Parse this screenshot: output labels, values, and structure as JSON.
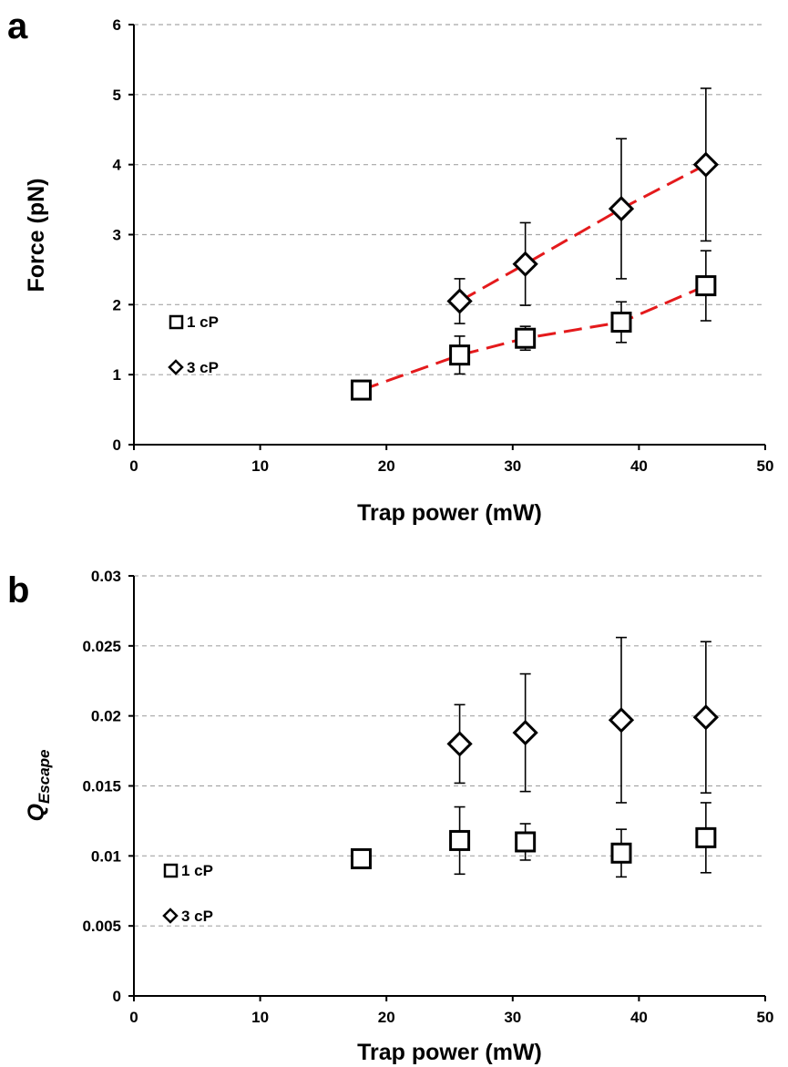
{
  "chart_data": [
    {
      "panel_label": "a",
      "type": "scatter",
      "xlabel": "Trap power (mW)",
      "ylabel": "Force (pN)",
      "xlim": [
        0,
        50
      ],
      "ylim": [
        0,
        6
      ],
      "x_ticks": [
        "0",
        "10",
        "20",
        "30",
        "40",
        "50"
      ],
      "y_ticks": [
        "0",
        "1",
        "2",
        "3",
        "4",
        "5",
        "6"
      ],
      "grid": "horizontal dashed",
      "legend_position": "left",
      "series": [
        {
          "name": "1 cP",
          "marker": "square",
          "x": [
            18,
            25.8,
            31,
            38.6,
            45.3
          ],
          "y": [
            0.78,
            1.28,
            1.52,
            1.75,
            2.27
          ],
          "err": [
            0.07,
            0.27,
            0.17,
            0.29,
            0.5
          ],
          "trendline": true
        },
        {
          "name": "3 cP",
          "marker": "diamond",
          "x": [
            25.8,
            31,
            38.6,
            45.3
          ],
          "y": [
            2.05,
            2.58,
            3.37,
            4.0
          ],
          "err": [
            0.32,
            0.59,
            1.0,
            1.09
          ],
          "trendline": true
        }
      ],
      "trendline_color": "#e41a1c"
    },
    {
      "panel_label": "b",
      "type": "scatter",
      "xlabel": "Trap power (mW)",
      "ylabel_main": "Q",
      "ylabel_sub": "Escape",
      "xlim": [
        0,
        50
      ],
      "ylim": [
        0,
        0.03
      ],
      "x_ticks": [
        "0",
        "10",
        "20",
        "30",
        "40",
        "50"
      ],
      "y_ticks": [
        "0",
        "0.005",
        "0.01",
        "0.015",
        "0.02",
        "0.025",
        "0.03"
      ],
      "grid": "horizontal dashed",
      "legend_position": "left",
      "series": [
        {
          "name": "1 cP",
          "marker": "square",
          "x": [
            18,
            25.8,
            31,
            38.6,
            45.3
          ],
          "y": [
            0.0098,
            0.0111,
            0.011,
            0.0102,
            0.0113
          ],
          "err": [
            0.0004,
            0.0024,
            0.0013,
            0.0017,
            0.0025
          ],
          "trendline": false
        },
        {
          "name": "3 cP",
          "marker": "diamond",
          "x": [
            25.8,
            31,
            38.6,
            45.3
          ],
          "y": [
            0.018,
            0.0188,
            0.0197,
            0.0199
          ],
          "err": [
            0.0028,
            0.0042,
            0.0059,
            0.0054
          ],
          "trendline": false
        }
      ]
    }
  ]
}
